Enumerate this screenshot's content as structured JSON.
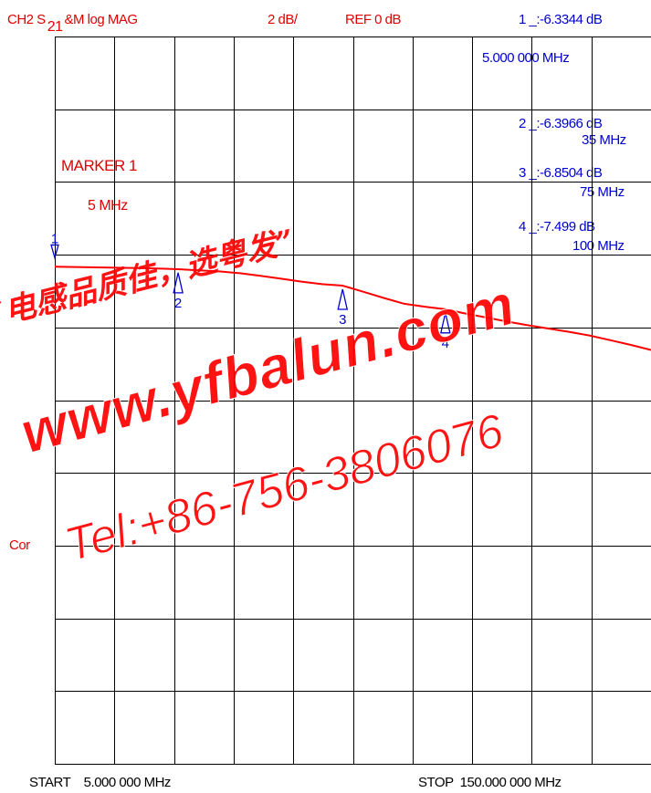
{
  "header": {
    "channel": "CH2 S",
    "sub": "21",
    "mode": "&M  log MAG",
    "scale": "2 dB/",
    "ref": "REF 0 dB"
  },
  "markers": [
    {
      "label": "1 _:-6.3344 dB",
      "freq": "5.000 000 MHz"
    },
    {
      "label": "2 _:-6.3966 dB",
      "freq": "35 MHz"
    },
    {
      "label": "3 _:-6.8504 dB",
      "freq": "75 MHz"
    },
    {
      "label": "4 _:-7.499  dB",
      "freq": "100 MHz"
    }
  ],
  "marker_box": {
    "title": "MARKER 1",
    "value": "5 MHz"
  },
  "side_label": "Cor",
  "footer": {
    "start": "START    5.000 000 MHz",
    "stop": "STOP  150.000 000 MHz"
  },
  "watermark": {
    "line1": "“电感品质佳，选粤发”",
    "line2": "www.yfbalun.com",
    "line3": "Tel:+86-756-3806076"
  },
  "colors": {
    "trace": "#ff0000",
    "grid": "#000000",
    "marker": "#0000d0"
  },
  "chart_data": {
    "type": "line",
    "title": "",
    "xlabel": "",
    "ylabel": "",
    "x_unit": "MHz",
    "y_unit": "dB",
    "xlim": [
      5,
      150
    ],
    "ylim": [
      -20,
      0
    ],
    "x_divisions": 10,
    "y_divisions": 10,
    "grid": true,
    "series": [
      {
        "x": [
          5,
          10,
          15,
          20,
          25,
          30,
          35,
          40,
          45,
          50,
          55,
          60,
          65,
          70,
          75,
          80,
          85,
          90,
          95,
          100,
          105,
          110,
          115,
          120,
          125,
          130,
          135,
          140,
          145,
          150
        ],
        "values": [
          -6.33,
          -6.34,
          -6.35,
          -6.36,
          -6.37,
          -6.38,
          -6.4,
          -6.43,
          -6.46,
          -6.51,
          -6.58,
          -6.66,
          -6.74,
          -6.81,
          -6.85,
          -7.02,
          -7.19,
          -7.35,
          -7.43,
          -7.5,
          -7.62,
          -7.73,
          -7.84,
          -7.94,
          -8.03,
          -8.12,
          -8.22,
          -8.35,
          -8.48,
          -8.62
        ]
      }
    ],
    "marker_points": [
      {
        "id": "1",
        "x": 5,
        "y": -6.3344
      },
      {
        "id": "2",
        "x": 35,
        "y": -6.3966
      },
      {
        "id": "3",
        "x": 75,
        "y": -6.8504
      },
      {
        "id": "4",
        "x": 100,
        "y": -7.499
      }
    ]
  }
}
